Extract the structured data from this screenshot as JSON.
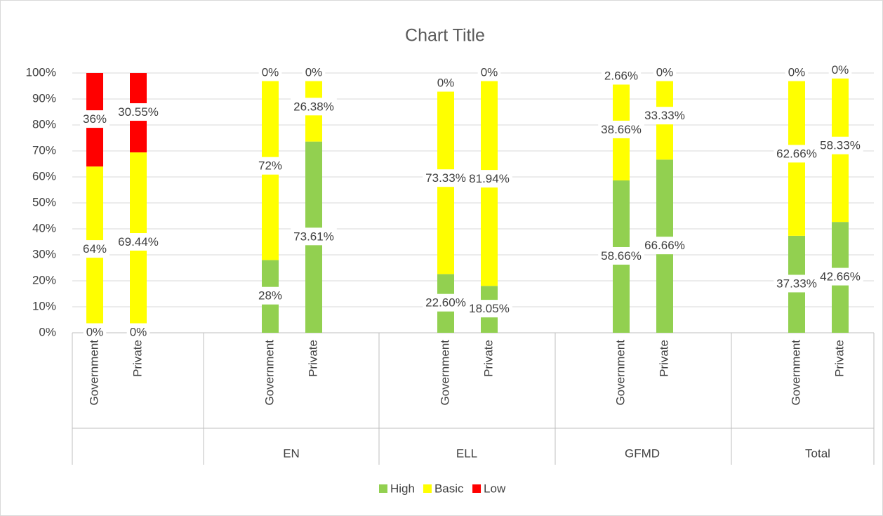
{
  "chart_data": {
    "type": "stacked_bar",
    "title": "Chart Title",
    "categories": [
      "Government",
      "Private",
      "Government",
      "Private",
      "Government",
      "Private",
      "Government",
      "Private",
      "Government",
      "Private"
    ],
    "groups": [
      null,
      "EN",
      "ELL",
      "GFMD",
      "Total"
    ],
    "series": [
      {
        "name": "High",
        "color": "#92d050",
        "values": [
          0,
          0,
          28,
          73.61,
          22.6,
          18.05,
          58.66,
          66.66,
          37.33,
          42.66
        ],
        "value_labels": [
          "0%",
          "0%",
          "28%",
          "73.61%",
          "22.60%",
          "18.05%",
          "58.66%",
          "66.66%",
          "37.33%",
          "42.66%"
        ]
      },
      {
        "name": "Basic",
        "color": "#ffff00",
        "values": [
          64,
          69.44,
          72,
          26.38,
          73.33,
          81.94,
          38.66,
          33.33,
          62.66,
          58.33
        ],
        "value_labels": [
          "64%",
          "69.44%",
          "72%",
          "26.38%",
          "73.33%",
          "81.94%",
          "38.66%",
          "33.33%",
          "62.66%",
          "58.33%"
        ]
      },
      {
        "name": "Low",
        "color": "#ff0000",
        "values": [
          36,
          30.55,
          0,
          0,
          0,
          0,
          2.66,
          0,
          0,
          0
        ],
        "value_labels": [
          "36%",
          "30.55%",
          "0%",
          "0%",
          "0%",
          "0%",
          "2.66%",
          "0%",
          "0%",
          "0%"
        ]
      }
    ],
    "ylim": [
      0,
      100
    ],
    "yticks": [
      {
        "value": 0,
        "label": "0%"
      },
      {
        "value": 10,
        "label": "10%"
      },
      {
        "value": 20,
        "label": "20%"
      },
      {
        "value": 30,
        "label": "30%"
      },
      {
        "value": 40,
        "label": "40%"
      },
      {
        "value": 50,
        "label": "50%"
      },
      {
        "value": 60,
        "label": "60%"
      },
      {
        "value": 70,
        "label": "70%"
      },
      {
        "value": 80,
        "label": "80%"
      },
      {
        "value": 90,
        "label": "90%"
      },
      {
        "value": 100,
        "label": "100%"
      }
    ],
    "grid": true,
    "legend": "bottom"
  }
}
